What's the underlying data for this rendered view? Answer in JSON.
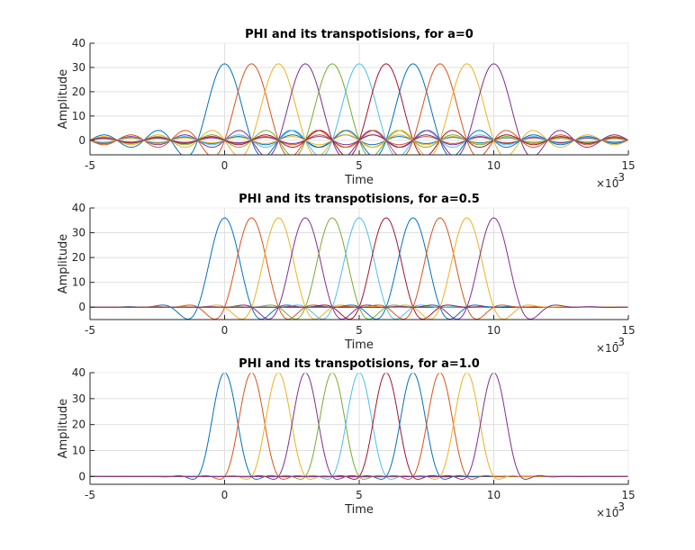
{
  "chart_data": [
    {
      "type": "line",
      "title": "PHI and its transpotisions, for a=0",
      "xlabel": "Time",
      "ylabel": "Amplitude",
      "x_multiplier": "×10",
      "x_exponent": "-3",
      "xlim": [
        -5,
        15
      ],
      "ylim": [
        -6,
        40
      ],
      "xticks": [
        -5,
        0,
        5,
        10,
        15
      ],
      "yticks": [
        0,
        10,
        20,
        30,
        40
      ],
      "grid": true,
      "rolloff": 0,
      "peak": 31.5,
      "main_lobe_halfwidth": 1.0,
      "series": [
        {
          "center": 0,
          "color": "#0072BD"
        },
        {
          "center": 1,
          "color": "#D95319"
        },
        {
          "center": 2,
          "color": "#EDB120"
        },
        {
          "center": 3,
          "color": "#7E2F8E"
        },
        {
          "center": 4,
          "color": "#77AC30"
        },
        {
          "center": 5,
          "color": "#4DBEEE"
        },
        {
          "center": 6,
          "color": "#A2142F"
        },
        {
          "center": 7,
          "color": "#0072BD"
        },
        {
          "center": 8,
          "color": "#D95319"
        },
        {
          "center": 9,
          "color": "#EDB120"
        },
        {
          "center": 10,
          "color": "#7E2F8E"
        }
      ]
    },
    {
      "type": "line",
      "title": "PHI and its transpotisions, for a=0.5",
      "xlabel": "Time",
      "ylabel": "Amplitude",
      "x_multiplier": "×10",
      "x_exponent": "-3",
      "xlim": [
        -5,
        15
      ],
      "ylim": [
        -5,
        40
      ],
      "xticks": [
        -5,
        0,
        5,
        10,
        15
      ],
      "yticks": [
        0,
        10,
        20,
        30,
        40
      ],
      "grid": true,
      "rolloff": 0.5,
      "peak": 36,
      "main_lobe_halfwidth": 1.0,
      "series": [
        {
          "center": 0,
          "color": "#0072BD"
        },
        {
          "center": 1,
          "color": "#D95319"
        },
        {
          "center": 2,
          "color": "#EDB120"
        },
        {
          "center": 3,
          "color": "#7E2F8E"
        },
        {
          "center": 4,
          "color": "#77AC30"
        },
        {
          "center": 5,
          "color": "#4DBEEE"
        },
        {
          "center": 6,
          "color": "#A2142F"
        },
        {
          "center": 7,
          "color": "#0072BD"
        },
        {
          "center": 8,
          "color": "#D95319"
        },
        {
          "center": 9,
          "color": "#EDB120"
        },
        {
          "center": 10,
          "color": "#7E2F8E"
        }
      ]
    },
    {
      "type": "line",
      "title": "PHI and its transpotisions, for a=1.0",
      "xlabel": "Time",
      "ylabel": "Amplitude",
      "x_multiplier": "×10",
      "x_exponent": "-3",
      "xlim": [
        -5,
        15
      ],
      "ylim": [
        -3,
        40
      ],
      "xticks": [
        -5,
        0,
        5,
        10,
        15
      ],
      "yticks": [
        0,
        10,
        20,
        30,
        40
      ],
      "grid": true,
      "rolloff": 1.0,
      "peak": 40,
      "main_lobe_halfwidth": 1.0,
      "series": [
        {
          "center": 0,
          "color": "#0072BD"
        },
        {
          "center": 1,
          "color": "#D95319"
        },
        {
          "center": 2,
          "color": "#EDB120"
        },
        {
          "center": 3,
          "color": "#7E2F8E"
        },
        {
          "center": 4,
          "color": "#77AC30"
        },
        {
          "center": 5,
          "color": "#4DBEEE"
        },
        {
          "center": 6,
          "color": "#A2142F"
        },
        {
          "center": 7,
          "color": "#0072BD"
        },
        {
          "center": 8,
          "color": "#D95319"
        },
        {
          "center": 9,
          "color": "#EDB120"
        },
        {
          "center": 10,
          "color": "#7E2F8E"
        }
      ]
    }
  ]
}
